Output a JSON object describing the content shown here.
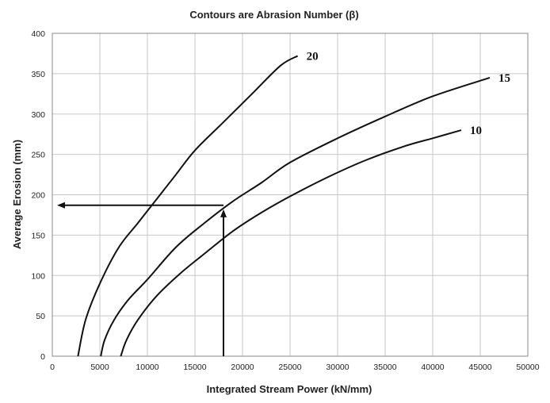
{
  "chart_data": {
    "type": "line",
    "title": "Contours are Abrasion Number (β)",
    "xlabel": "Integrated Stream Power (kN/mm)",
    "ylabel": "Average Erosion (mm)",
    "xlim": [
      0,
      50000
    ],
    "ylim": [
      0,
      400
    ],
    "xticks": [
      0,
      5000,
      10000,
      15000,
      20000,
      25000,
      30000,
      35000,
      40000,
      45000,
      50000
    ],
    "yticks": [
      0,
      50,
      100,
      150,
      200,
      250,
      300,
      350,
      400
    ],
    "grid": true,
    "legend": "none",
    "series": [
      {
        "name": "20",
        "x": [
          2700,
          3500,
          5000,
          7000,
          9000,
          11000,
          13000,
          15000,
          18000,
          21000,
          24000,
          25800
        ],
        "y": [
          0,
          45,
          90,
          135,
          165,
          195,
          225,
          255,
          290,
          325,
          360,
          372
        ]
      },
      {
        "name": "15",
        "x": [
          5100,
          5500,
          6500,
          8000,
          10000,
          13000,
          16000,
          19000,
          22000,
          25000,
          30000,
          35000,
          40000,
          46000
        ],
        "y": [
          0,
          20,
          45,
          70,
          95,
          135,
          165,
          192,
          215,
          240,
          270,
          297,
          322,
          345
        ]
      },
      {
        "name": "10",
        "x": [
          7200,
          7800,
          9000,
          11000,
          13500,
          16000,
          19000,
          22000,
          25000,
          29000,
          33000,
          37000,
          40000,
          43000
        ],
        "y": [
          0,
          20,
          45,
          75,
          103,
          127,
          155,
          178,
          198,
          222,
          243,
          260,
          270,
          280
        ]
      }
    ],
    "annotations": {
      "vertical_arrow": {
        "x": 18000,
        "y_from": 0,
        "y_to": 182
      },
      "horizontal_arrow": {
        "y": 187,
        "x_from": 18000,
        "x_to": 500
      }
    }
  }
}
